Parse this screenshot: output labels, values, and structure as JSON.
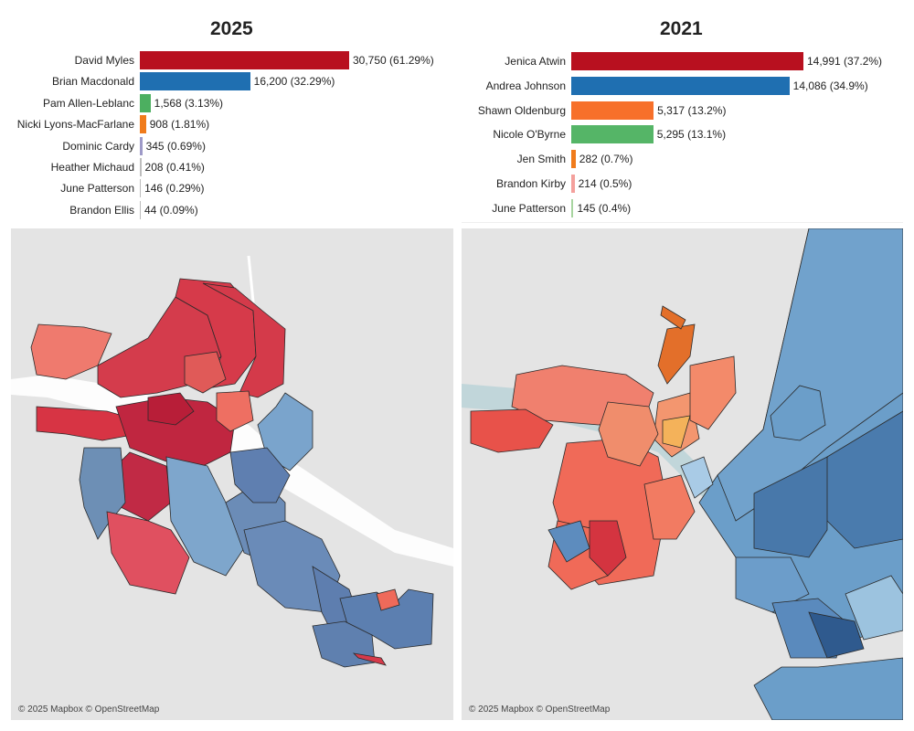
{
  "left": {
    "title": "2025",
    "max_votes": 30750,
    "candidates": [
      {
        "name": "David Myles",
        "votes": 30750,
        "label": "30,750 (61.29%)",
        "color": "#b8101f"
      },
      {
        "name": "Brian Macdonald",
        "votes": 16200,
        "label": "16,200 (32.29%)",
        "color": "#1f6fb1"
      },
      {
        "name": "Pam Allen-Leblanc",
        "votes": 1568,
        "label": "1,568 (3.13%)",
        "color": "#4caf60"
      },
      {
        "name": "Nicki Lyons-MacFarlane",
        "votes": 908,
        "label": "908 (1.81%)",
        "color": "#f07b1b"
      },
      {
        "name": "Dominic Cardy",
        "votes": 345,
        "label": "345 (0.69%)",
        "color": "#9e9ac8"
      },
      {
        "name": "Heather Michaud",
        "votes": 208,
        "label": "208 (0.41%)",
        "color": "#bdbdbd"
      },
      {
        "name": "June Patterson",
        "votes": 146,
        "label": "146 (0.29%)",
        "color": "#bdbdbd"
      },
      {
        "name": "Brandon Ellis",
        "votes": 44,
        "label": "44 (0.09%)",
        "color": "#bdbdbd"
      }
    ],
    "attribution": "© 2025 Mapbox © OpenStreetMap"
  },
  "right": {
    "title": "2021",
    "max_votes": 14991,
    "candidates": [
      {
        "name": "Jenica Atwin",
        "votes": 14991,
        "label": "14,991 (37.2%)",
        "color": "#b8101f"
      },
      {
        "name": "Andrea Johnson",
        "votes": 14086,
        "label": "14,086 (34.9%)",
        "color": "#1f6fb1"
      },
      {
        "name": "Shawn Oldenburg",
        "votes": 5317,
        "label": "5,317 (13.2%)",
        "color": "#f7702a"
      },
      {
        "name": "Nicole O'Byrne",
        "votes": 5295,
        "label": "5,295 (13.1%)",
        "color": "#55b567"
      },
      {
        "name": "Jen Smith",
        "votes": 282,
        "label": "282 (0.7%)",
        "color": "#f07b1b"
      },
      {
        "name": "Brandon Kirby",
        "votes": 214,
        "label": "214 (0.5%)",
        "color": "#f4a09c"
      },
      {
        "name": "June Patterson",
        "votes": 145,
        "label": "145 (0.4%)",
        "color": "#a8d5a0"
      }
    ],
    "attribution": "© 2025 Mapbox © OpenStreetMap"
  }
}
